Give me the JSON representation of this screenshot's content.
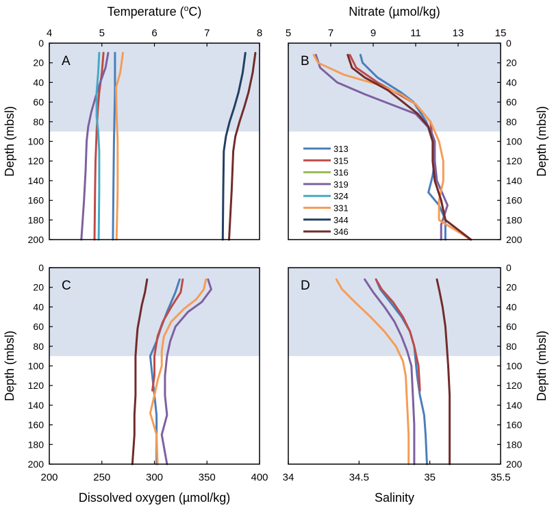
{
  "figure": {
    "description_labels": {
      "depth_axis_label": "Depth (mbsl)"
    }
  },
  "colors": {
    "mixed_layer_shade": "#d9e1ee",
    "station_313": "#4a7ebb",
    "station_315": "#be4b48",
    "station_316": "#98b954",
    "station_319": "#7d60a0",
    "station_324": "#46aac5",
    "station_331": "#f59d56",
    "station_344": "#233f63",
    "station_346": "#722b2a"
  },
  "legend": {
    "panel": "B",
    "entries": [
      "313",
      "315",
      "316",
      "319",
      "324",
      "331",
      "344",
      "346"
    ]
  },
  "chart_data": [
    {
      "panel": "A",
      "type": "line",
      "xlabel": "Temperature (oC)",
      "xlabel_main": "Temperature (",
      "xlabel_sup": "o",
      "xlabel_end": "C)",
      "ylabel": "Depth (mbsl)",
      "x_axis_position": "top",
      "y_axis_side": "left",
      "xlim": [
        4,
        8
      ],
      "xticks": [
        4,
        5,
        6,
        7,
        8
      ],
      "ylim": [
        0,
        200
      ],
      "yticks": [
        0,
        20,
        40,
        60,
        80,
        100,
        120,
        140,
        160,
        180,
        200
      ],
      "mixed_layer_depth": 90,
      "series": [
        {
          "name": "313",
          "points": [
            [
              5.25,
              10
            ],
            [
              5.25,
              50
            ],
            [
              5.23,
              100
            ],
            [
              5.22,
              150
            ],
            [
              5.21,
              200
            ]
          ]
        },
        {
          "name": "315",
          "points": [
            [
              5.03,
              10
            ],
            [
              5.0,
              30
            ],
            [
              4.95,
              50
            ],
            [
              4.92,
              70
            ],
            [
              4.9,
              90
            ],
            [
              4.88,
              120
            ],
            [
              4.87,
              150
            ],
            [
              4.86,
              200
            ]
          ]
        },
        {
          "name": "319",
          "points": [
            [
              5.12,
              10
            ],
            [
              5.07,
              25
            ],
            [
              4.97,
              40
            ],
            [
              4.88,
              55
            ],
            [
              4.8,
              70
            ],
            [
              4.74,
              85
            ],
            [
              4.71,
              100
            ],
            [
              4.69,
              130
            ],
            [
              4.66,
              160
            ],
            [
              4.61,
              200
            ]
          ]
        },
        {
          "name": "324",
          "points": [
            [
              4.95,
              10
            ],
            [
              4.93,
              30
            ],
            [
              4.9,
              50
            ],
            [
              4.9,
              75
            ],
            [
              4.93,
              90
            ],
            [
              4.95,
              110
            ],
            [
              4.95,
              150
            ],
            [
              4.94,
              200
            ]
          ]
        },
        {
          "name": "331",
          "points": [
            [
              5.4,
              10
            ],
            [
              5.35,
              30
            ],
            [
              5.27,
              45
            ],
            [
              5.28,
              70
            ],
            [
              5.3,
              100
            ],
            [
              5.3,
              150
            ],
            [
              5.28,
              200
            ]
          ]
        },
        {
          "name": "344",
          "points": [
            [
              7.73,
              10
            ],
            [
              7.68,
              30
            ],
            [
              7.6,
              50
            ],
            [
              7.52,
              65
            ],
            [
              7.43,
              80
            ],
            [
              7.36,
              95
            ],
            [
              7.32,
              110
            ],
            [
              7.31,
              150
            ],
            [
              7.3,
              200
            ]
          ]
        },
        {
          "name": "346",
          "points": [
            [
              7.92,
              10
            ],
            [
              7.87,
              30
            ],
            [
              7.79,
              50
            ],
            [
              7.71,
              65
            ],
            [
              7.62,
              80
            ],
            [
              7.54,
              95
            ],
            [
              7.5,
              110
            ],
            [
              7.47,
              150
            ],
            [
              7.42,
              200
            ]
          ]
        }
      ]
    },
    {
      "panel": "B",
      "type": "line",
      "xlabel": "Nitrate (µmol/kg)",
      "ylabel": "Depth (mbsl)",
      "x_axis_position": "top",
      "y_axis_side": "right",
      "xlim": [
        5,
        15
      ],
      "xticks": [
        5,
        7,
        9,
        11,
        13,
        15
      ],
      "ylim": [
        0,
        200
      ],
      "yticks": [
        0,
        20,
        40,
        60,
        80,
        100,
        120,
        140,
        160,
        180,
        200
      ],
      "mixed_layer_depth": 90,
      "series": [
        {
          "name": "313",
          "points": [
            [
              8.4,
              12
            ],
            [
              8.5,
              20
            ],
            [
              9.2,
              35
            ],
            [
              10.3,
              50
            ],
            [
              10.9,
              60
            ],
            [
              11.5,
              80
            ],
            [
              11.8,
              100
            ],
            [
              11.9,
              120
            ],
            [
              11.8,
              135
            ],
            [
              11.6,
              152
            ],
            [
              12.1,
              165
            ],
            [
              12.4,
              180
            ],
            [
              12.4,
              200
            ]
          ]
        },
        {
          "name": "315",
          "points": [
            [
              7.9,
              12
            ],
            [
              8.2,
              25
            ],
            [
              9.2,
              40
            ],
            [
              10.2,
              52
            ],
            [
              11.0,
              62
            ],
            [
              11.7,
              80
            ],
            [
              11.8,
              100
            ],
            [
              11.9,
              120
            ],
            [
              11.9,
              140
            ],
            [
              12.2,
              160
            ],
            [
              12.4,
              180
            ],
            [
              13.6,
              200
            ]
          ]
        },
        {
          "name": "319",
          "points": [
            [
              6.3,
              12
            ],
            [
              6.5,
              25
            ],
            [
              7.3,
              40
            ],
            [
              8.6,
              52
            ],
            [
              9.8,
              62
            ],
            [
              11.0,
              72
            ],
            [
              11.7,
              88
            ],
            [
              11.9,
              100
            ],
            [
              11.9,
              120
            ],
            [
              12.0,
              140
            ],
            [
              12.5,
              165
            ],
            [
              12.2,
              185
            ],
            [
              12.2,
              200
            ]
          ]
        },
        {
          "name": "331",
          "points": [
            [
              6.2,
              12
            ],
            [
              6.4,
              20
            ],
            [
              7.6,
              32
            ],
            [
              9.2,
              42
            ],
            [
              10.3,
              52
            ],
            [
              11.0,
              62
            ],
            [
              11.7,
              80
            ],
            [
              12.1,
              100
            ],
            [
              12.3,
              120
            ],
            [
              12.3,
              140
            ],
            [
              12.1,
              160
            ],
            [
              12.1,
              180
            ],
            [
              13.6,
              200
            ]
          ]
        },
        {
          "name": "346",
          "points": [
            [
              7.8,
              12
            ],
            [
              8.0,
              25
            ],
            [
              8.6,
              35
            ],
            [
              9.7,
              48
            ],
            [
              10.4,
              60
            ],
            [
              11.1,
              72
            ],
            [
              11.6,
              85
            ],
            [
              11.8,
              100
            ],
            [
              11.8,
              120
            ],
            [
              11.9,
              140
            ],
            [
              12.2,
              160
            ],
            [
              12.4,
              180
            ],
            [
              13.6,
              200
            ]
          ]
        }
      ]
    },
    {
      "panel": "C",
      "type": "line",
      "xlabel": "Dissolved oxygen (µmol/kg)",
      "ylabel": "Depth (mbsl)",
      "x_axis_position": "bottom",
      "y_axis_side": "left",
      "xlim": [
        200,
        400
      ],
      "xticks": [
        200,
        250,
        300,
        350,
        400
      ],
      "ylim": [
        0,
        200
      ],
      "yticks": [
        0,
        20,
        40,
        60,
        80,
        100,
        120,
        140,
        160,
        180,
        200
      ],
      "mixed_layer_depth": 90,
      "series": [
        {
          "name": "313",
          "points": [
            [
              324,
              12
            ],
            [
              320,
              25
            ],
            [
              312,
              45
            ],
            [
              306,
              62
            ],
            [
              302,
              75
            ],
            [
              296,
              90
            ],
            [
              298,
              110
            ],
            [
              300,
              130
            ],
            [
              302,
              150
            ],
            [
              302,
              170
            ],
            [
              302,
              200
            ]
          ]
        },
        {
          "name": "315",
          "points": [
            [
              327,
              12
            ],
            [
              325,
              25
            ],
            [
              316,
              40
            ],
            [
              308,
              55
            ],
            [
              303,
              70
            ],
            [
              300,
              90
            ],
            [
              300,
              110
            ],
            [
              298,
              125
            ]
          ]
        },
        {
          "name": "319",
          "points": [
            [
              351,
              12
            ],
            [
              354,
              22
            ],
            [
              345,
              35
            ],
            [
              332,
              45
            ],
            [
              320,
              60
            ],
            [
              315,
              75
            ],
            [
              312,
              90
            ],
            [
              310,
              110
            ],
            [
              310,
              130
            ],
            [
              312,
              150
            ],
            [
              307,
              170
            ],
            [
              312,
              200
            ]
          ]
        },
        {
          "name": "331",
          "points": [
            [
              349,
              12
            ],
            [
              347,
              22
            ],
            [
              340,
              32
            ],
            [
              328,
              42
            ],
            [
              316,
              55
            ],
            [
              309,
              70
            ],
            [
              307,
              85
            ],
            [
              307,
              100
            ],
            [
              303,
              115
            ],
            [
              300,
              130
            ],
            [
              296,
              148
            ],
            [
              302,
              170
            ],
            [
              303,
              200
            ]
          ]
        },
        {
          "name": "346",
          "points": [
            [
              293,
              12
            ],
            [
              291,
              25
            ],
            [
              288,
              38
            ],
            [
              286,
              50
            ],
            [
              284,
              62
            ],
            [
              283,
              75
            ],
            [
              282,
              90
            ],
            [
              282,
              110
            ],
            [
              282,
              130
            ],
            [
              281,
              150
            ],
            [
              281,
              170
            ],
            [
              279,
              200
            ]
          ]
        }
      ]
    },
    {
      "panel": "D",
      "type": "line",
      "xlabel": "Salinity",
      "ylabel": "Depth (mbsl)",
      "x_axis_position": "bottom",
      "y_axis_side": "right",
      "xlim": [
        34,
        35.5
      ],
      "xticks": [
        34,
        34.5,
        35,
        35.5
      ],
      "ylim": [
        0,
        200
      ],
      "yticks": [
        0,
        20,
        40,
        60,
        80,
        100,
        120,
        140,
        160,
        180,
        200
      ],
      "mixed_layer_depth": 90,
      "series": [
        {
          "name": "313",
          "points": [
            [
              34.62,
              12
            ],
            [
              34.65,
              22
            ],
            [
              34.72,
              35
            ],
            [
              34.8,
              50
            ],
            [
              34.86,
              65
            ],
            [
              34.89,
              80
            ],
            [
              34.9,
              95
            ],
            [
              34.91,
              110
            ],
            [
              34.93,
              130
            ],
            [
              34.96,
              150
            ],
            [
              34.97,
              170
            ],
            [
              34.98,
              200
            ]
          ]
        },
        {
          "name": "315",
          "points": [
            [
              34.62,
              12
            ],
            [
              34.66,
              22
            ],
            [
              34.74,
              35
            ],
            [
              34.81,
              50
            ],
            [
              34.86,
              65
            ],
            [
              34.89,
              80
            ],
            [
              34.92,
              100
            ],
            [
              34.93,
              125
            ]
          ]
        },
        {
          "name": "319",
          "points": [
            [
              34.54,
              12
            ],
            [
              34.6,
              25
            ],
            [
              34.68,
              40
            ],
            [
              34.75,
              55
            ],
            [
              34.8,
              70
            ],
            [
              34.84,
              85
            ],
            [
              34.87,
              100
            ],
            [
              34.88,
              130
            ],
            [
              34.89,
              160
            ],
            [
              34.89,
              200
            ]
          ]
        },
        {
          "name": "331",
          "points": [
            [
              34.34,
              12
            ],
            [
              34.38,
              22
            ],
            [
              34.47,
              35
            ],
            [
              34.58,
              50
            ],
            [
              34.68,
              65
            ],
            [
              34.76,
              80
            ],
            [
              34.81,
              95
            ],
            [
              34.83,
              110
            ],
            [
              34.84,
              140
            ],
            [
              34.85,
              170
            ],
            [
              34.85,
              200
            ]
          ]
        },
        {
          "name": "346",
          "points": [
            [
              35.05,
              12
            ],
            [
              35.07,
              25
            ],
            [
              35.09,
              40
            ],
            [
              35.11,
              60
            ],
            [
              35.12,
              80
            ],
            [
              35.13,
              100
            ],
            [
              35.14,
              130
            ],
            [
              35.14,
              160
            ],
            [
              35.14,
              200
            ]
          ]
        }
      ]
    }
  ]
}
